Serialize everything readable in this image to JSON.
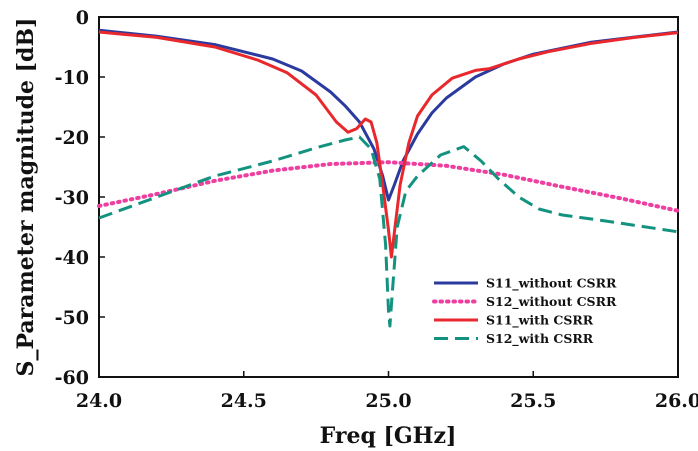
{
  "chart_data": {
    "type": "line",
    "xlabel": "Freq [GHz]",
    "ylabel": "S_Parameter  magnitude  [dB]",
    "xlim": [
      24.0,
      26.0
    ],
    "ylim": [
      -60,
      0
    ],
    "xticks": [
      "24.0",
      "24.5",
      "25.0",
      "25.5",
      "26.0"
    ],
    "yticks": [
      "0",
      "-10",
      "-20",
      "-30",
      "-40",
      "-50",
      "-60"
    ],
    "xtick_values": [
      24.0,
      24.5,
      25.0,
      25.5,
      26.0
    ],
    "ytick_values": [
      0,
      -10,
      -20,
      -30,
      -40,
      -50,
      -60
    ],
    "grid": false,
    "legend_position": "lower-right",
    "series": [
      {
        "name": "S11_without CSRR",
        "color": "#2b3a9e",
        "style": "solid",
        "points": [
          [
            24.0,
            -2.2
          ],
          [
            24.2,
            -3.2
          ],
          [
            24.4,
            -4.6
          ],
          [
            24.6,
            -7.0
          ],
          [
            24.7,
            -9.0
          ],
          [
            24.8,
            -12.5
          ],
          [
            24.85,
            -14.8
          ],
          [
            24.9,
            -17.5
          ],
          [
            24.95,
            -22.0
          ],
          [
            24.98,
            -26.5
          ],
          [
            25.0,
            -30.5
          ],
          [
            25.02,
            -28.0
          ],
          [
            25.05,
            -24.0
          ],
          [
            25.1,
            -19.5
          ],
          [
            25.15,
            -16.0
          ],
          [
            25.2,
            -13.5
          ],
          [
            25.3,
            -10.0
          ],
          [
            25.4,
            -7.8
          ],
          [
            25.5,
            -6.2
          ],
          [
            25.7,
            -4.2
          ],
          [
            26.0,
            -2.5
          ]
        ]
      },
      {
        "name": "S12_without CSRR",
        "color": "#ee3fa0",
        "style": "dotted",
        "points": [
          [
            24.0,
            -31.5
          ],
          [
            24.2,
            -29.5
          ],
          [
            24.4,
            -27.3
          ],
          [
            24.6,
            -25.6
          ],
          [
            24.8,
            -24.5
          ],
          [
            25.0,
            -24.2
          ],
          [
            25.2,
            -24.8
          ],
          [
            25.4,
            -26.3
          ],
          [
            25.6,
            -28.3
          ],
          [
            25.8,
            -30.2
          ],
          [
            26.0,
            -32.3
          ]
        ]
      },
      {
        "name": "S11_with CSRR",
        "color": "#e8282c",
        "style": "solid",
        "points": [
          [
            24.0,
            -2.5
          ],
          [
            24.2,
            -3.4
          ],
          [
            24.4,
            -5.0
          ],
          [
            24.55,
            -7.2
          ],
          [
            24.65,
            -9.3
          ],
          [
            24.75,
            -13.0
          ],
          [
            24.82,
            -17.5
          ],
          [
            24.86,
            -19.2
          ],
          [
            24.89,
            -18.6
          ],
          [
            24.92,
            -17.0
          ],
          [
            24.94,
            -17.5
          ],
          [
            24.96,
            -21.0
          ],
          [
            24.98,
            -28.0
          ],
          [
            25.0,
            -35.5
          ],
          [
            25.01,
            -40.0
          ],
          [
            25.02,
            -36.0
          ],
          [
            25.04,
            -28.0
          ],
          [
            25.07,
            -21.0
          ],
          [
            25.1,
            -16.5
          ],
          [
            25.15,
            -13.0
          ],
          [
            25.22,
            -10.2
          ],
          [
            25.3,
            -8.9
          ],
          [
            25.35,
            -8.6
          ],
          [
            25.45,
            -7.0
          ],
          [
            25.55,
            -5.8
          ],
          [
            25.7,
            -4.4
          ],
          [
            25.85,
            -3.4
          ],
          [
            26.0,
            -2.6
          ]
        ]
      },
      {
        "name": "S12_with CSRR",
        "color": "#13937f",
        "style": "dashed",
        "points": [
          [
            24.0,
            -33.5
          ],
          [
            24.2,
            -30.0
          ],
          [
            24.4,
            -26.5
          ],
          [
            24.6,
            -24.0
          ],
          [
            24.75,
            -21.8
          ],
          [
            24.85,
            -20.5
          ],
          [
            24.9,
            -20.0
          ],
          [
            24.94,
            -22.0
          ],
          [
            24.97,
            -27.0
          ],
          [
            24.99,
            -38.0
          ],
          [
            25.0,
            -49.0
          ],
          [
            25.005,
            -51.5
          ],
          [
            25.01,
            -48.0
          ],
          [
            25.03,
            -35.0
          ],
          [
            25.06,
            -29.0
          ],
          [
            25.1,
            -26.5
          ],
          [
            25.18,
            -23.0
          ],
          [
            25.26,
            -21.6
          ],
          [
            25.32,
            -24.0
          ],
          [
            25.38,
            -27.0
          ],
          [
            25.45,
            -30.0
          ],
          [
            25.52,
            -32.0
          ],
          [
            25.6,
            -33.0
          ],
          [
            25.75,
            -34.0
          ],
          [
            26.0,
            -35.8
          ]
        ]
      }
    ]
  }
}
